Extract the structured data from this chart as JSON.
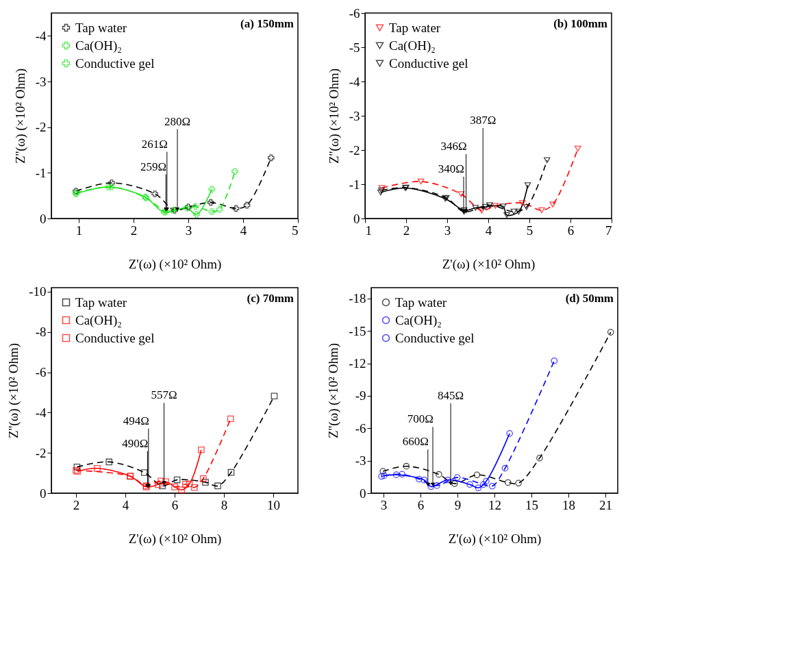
{
  "chart_data": [
    {
      "type": "line",
      "title": "(a) 150mm",
      "xlabel": "Z'(ω) (×10² Ohm)",
      "ylabel": "Z''(ω) (×10² Ohm)",
      "xlim": [
        0.5,
        5
      ],
      "ylim": [
        0,
        -4.5
      ],
      "xticks": [
        1,
        2,
        3,
        4,
        5
      ],
      "yticks": [
        0,
        -1,
        -2,
        -3,
        -4
      ],
      "grid": false,
      "legend": "top left",
      "marker": "cross",
      "series": [
        {
          "name": "Tap water",
          "color": "#000000",
          "line_style": "dashed",
          "x": [
            0.95,
            1.6,
            2.39,
            2.75,
            3.0,
            3.41,
            3.87,
            4.07,
            4.51
          ],
          "values": [
            -0.6,
            -0.78,
            -0.54,
            -0.18,
            -0.25,
            -0.35,
            -0.22,
            -0.29,
            -1.33
          ]
        },
        {
          "name": "Ca(OH)₂",
          "color": "#1ee61e",
          "line_style": "dashed",
          "x": [
            0.95,
            1.6,
            2.23,
            2.59,
            2.72,
            3.13,
            3.43,
            3.57,
            3.85
          ],
          "values": [
            -0.56,
            -0.69,
            -0.45,
            -0.15,
            -0.18,
            -0.26,
            -0.15,
            -0.2,
            -1.03
          ]
        },
        {
          "name": "Conductive gel",
          "color": "#1ee61e",
          "line_style": "solid",
          "x": [
            0.95,
            1.54,
            2.21,
            2.56,
            2.97,
            3.15,
            3.43
          ],
          "values": [
            -0.54,
            -0.69,
            -0.47,
            -0.14,
            -0.23,
            -0.09,
            -0.64
          ]
        }
      ],
      "annotations": [
        {
          "text": "259Ω",
          "x": 2.59,
          "y": -0.2
        },
        {
          "text": "261Ω",
          "x": 2.61,
          "y": -0.2
        },
        {
          "text": "280Ω",
          "x": 2.8,
          "y": -0.2
        }
      ]
    },
    {
      "type": "line",
      "title": "(b) 100mm",
      "xlabel": "Z'(ω) (×10² Ohm)",
      "ylabel": "Z''(ω) (×10² Ohm)",
      "xlim": [
        1,
        7
      ],
      "ylim": [
        0,
        -6
      ],
      "xticks": [
        1,
        2,
        3,
        4,
        5,
        6,
        7
      ],
      "yticks": [
        0,
        -1,
        -2,
        -3,
        -4,
        -5,
        -6
      ],
      "grid": false,
      "legend": "top left",
      "marker": "triangle",
      "series": [
        {
          "name": "Tap water",
          "color": "#ff0000",
          "line_style": "dashed",
          "x": [
            1.41,
            2.36,
            3.34,
            3.84,
            4.17,
            4.83,
            5.3,
            5.57,
            6.18
          ],
          "values": [
            -0.89,
            -1.08,
            -0.71,
            -0.23,
            -0.37,
            -0.45,
            -0.24,
            -0.41,
            -2.04
          ]
        },
        {
          "name": "Ca(OH)₂",
          "color": "#000000",
          "line_style": "dashed",
          "x": [
            1.4,
            2.0,
            2.98,
            3.41,
            4.03,
            4.62,
            4.93,
            5.43
          ],
          "values": [
            -0.82,
            -0.9,
            -0.6,
            -0.2,
            -0.39,
            -0.2,
            -0.33,
            -1.7
          ]
        },
        {
          "name": "Conductive gel",
          "color": "#000000",
          "line_style": "solid",
          "x": [
            1.38,
            1.98,
            2.95,
            3.41,
            3.69,
            3.93,
            4.36,
            4.45,
            4.74,
            4.96
          ],
          "values": [
            -0.76,
            -0.89,
            -0.58,
            -0.24,
            -0.31,
            -0.34,
            -0.35,
            -0.1,
            -0.2,
            -0.97
          ]
        }
      ],
      "annotations": [
        {
          "text": "340Ω",
          "x": 3.4,
          "y": -0.2
        },
        {
          "text": "346Ω",
          "x": 3.46,
          "y": -0.2
        },
        {
          "text": "387Ω",
          "x": 3.87,
          "y": -0.3
        }
      ]
    },
    {
      "type": "line",
      "title": "(c) 70mm",
      "xlabel": "Z'(ω) (×10² Ohm)",
      "ylabel": "Z''(ω) (×10² Ohm)",
      "xlim": [
        1,
        11
      ],
      "ylim": [
        0,
        -10.2
      ],
      "xticks": [
        2,
        4,
        6,
        8,
        10
      ],
      "yticks": [
        0,
        -2,
        -4,
        -6,
        -8,
        -10
      ],
      "grid": false,
      "legend": "top left",
      "marker": "square",
      "series": [
        {
          "name": "Tap water",
          "color": "#000000",
          "line_style": "dashed",
          "x": [
            2.04,
            3.34,
            4.77,
            5.5,
            6.1,
            7.25,
            7.75,
            8.29,
            10.04
          ],
          "values": [
            -1.3,
            -1.55,
            -1.02,
            -0.36,
            -0.66,
            -0.54,
            -0.36,
            -1.03,
            -4.82
          ]
        },
        {
          "name": "Ca(OH)₂",
          "color": "#ff0000",
          "line_style": "dashed",
          "x": [
            2.0,
            4.2,
            4.85,
            5.45,
            6.0,
            6.44,
            6.8,
            7.16,
            8.27
          ],
          "values": [
            -1.13,
            -0.84,
            -0.36,
            -0.6,
            -0.31,
            -0.44,
            -0.28,
            -0.72,
            -3.69
          ]
        },
        {
          "name": "Conductive gel",
          "color": "#ff0000",
          "line_style": "solid",
          "x": [
            2.06,
            2.86,
            4.2,
            4.85,
            5.33,
            5.64,
            6.28,
            6.6,
            7.08
          ],
          "values": [
            -1.08,
            -1.23,
            -0.84,
            -0.31,
            -0.43,
            -0.57,
            -0.16,
            -0.46,
            -2.15
          ]
        }
      ],
      "annotations": [
        {
          "text": "490Ω",
          "x": 4.9,
          "y": -0.35
        },
        {
          "text": "494Ω",
          "x": 4.94,
          "y": -0.35
        },
        {
          "text": "557Ω",
          "x": 5.57,
          "y": -0.5
        }
      ]
    },
    {
      "type": "line",
      "title": "(d) 50mm",
      "xlabel": "Z'(ω) (×10² Ohm)",
      "ylabel": "Z''(ω) (×10² Ohm)",
      "xlim": [
        2,
        22
      ],
      "ylim": [
        0,
        -19
      ],
      "xticks": [
        3,
        6,
        9,
        12,
        15,
        18,
        21
      ],
      "yticks": [
        0,
        -3,
        -6,
        -9,
        -12,
        -15,
        -18
      ],
      "grid": false,
      "legend": "top left",
      "marker": "circle",
      "series": [
        {
          "name": "Tap water",
          "color": "#000000",
          "line_style": "dashed",
          "x": [
            2.95,
            4.85,
            7.49,
            8.77,
            10.58,
            13.1,
            13.95,
            15.66,
            21.43
          ],
          "values": [
            -2.02,
            -2.49,
            -1.73,
            -0.88,
            -1.69,
            -0.98,
            -0.93,
            -3.24,
            -14.88
          ]
        },
        {
          "name": "Ca(OH)₂",
          "color": "#0000ff",
          "line_style": "dashed",
          "x": [
            3.05,
            4.5,
            5.88,
            7.33,
            8.98,
            11.1,
            11.82,
            12.86,
            16.85
          ],
          "values": [
            -1.62,
            -1.75,
            -1.3,
            -0.7,
            -1.45,
            -0.8,
            -0.65,
            -2.3,
            -12.24
          ]
        },
        {
          "name": "Conductive gel",
          "color": "#0000ff",
          "line_style": "solid",
          "x": [
            2.84,
            4.04,
            6.29,
            6.85,
            8.21,
            10.0,
            10.69,
            11.33,
            13.23
          ],
          "values": [
            -1.55,
            -1.7,
            -1.22,
            -0.6,
            -1.22,
            -0.8,
            -0.49,
            -1.1,
            -5.52
          ]
        }
      ],
      "annotations": [
        {
          "text": "660Ω",
          "x": 6.6,
          "y": -0.8
        },
        {
          "text": "700Ω",
          "x": 7.0,
          "y": -0.8
        },
        {
          "text": "845Ω",
          "x": 8.45,
          "y": -0.9
        }
      ]
    }
  ]
}
